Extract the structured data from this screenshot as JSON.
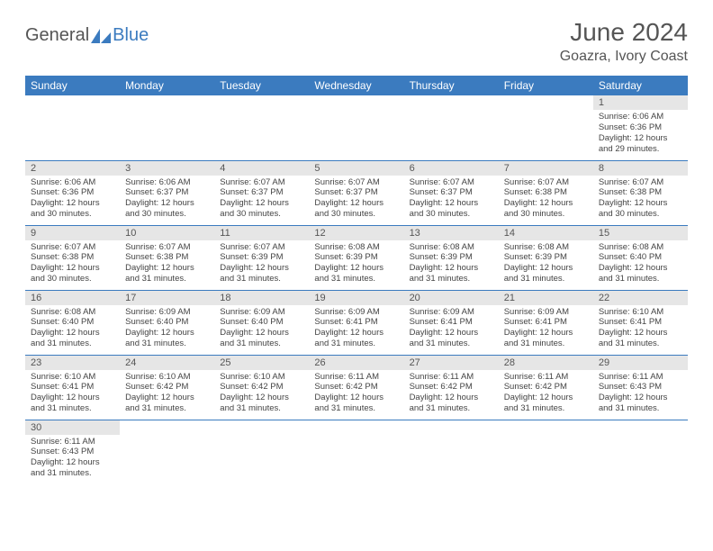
{
  "brand": {
    "text1": "General",
    "text2": "Blue",
    "icon_color": "#3b7bbf"
  },
  "header": {
    "month_title": "June 2024",
    "location": "Goazra, Ivory Coast"
  },
  "calendar": {
    "columns": [
      "Sunday",
      "Monday",
      "Tuesday",
      "Wednesday",
      "Thursday",
      "Friday",
      "Saturday"
    ],
    "header_bg": "#3b7bbf",
    "header_fg": "#ffffff",
    "cell_border": "#3b7bbf",
    "daynum_bg": "#e6e6e6",
    "first_weekday_index": 6,
    "days": [
      {
        "n": 1,
        "sunrise": "6:06 AM",
        "sunset": "6:36 PM",
        "daylight": "12 hours and 29 minutes."
      },
      {
        "n": 2,
        "sunrise": "6:06 AM",
        "sunset": "6:36 PM",
        "daylight": "12 hours and 30 minutes."
      },
      {
        "n": 3,
        "sunrise": "6:06 AM",
        "sunset": "6:37 PM",
        "daylight": "12 hours and 30 minutes."
      },
      {
        "n": 4,
        "sunrise": "6:07 AM",
        "sunset": "6:37 PM",
        "daylight": "12 hours and 30 minutes."
      },
      {
        "n": 5,
        "sunrise": "6:07 AM",
        "sunset": "6:37 PM",
        "daylight": "12 hours and 30 minutes."
      },
      {
        "n": 6,
        "sunrise": "6:07 AM",
        "sunset": "6:37 PM",
        "daylight": "12 hours and 30 minutes."
      },
      {
        "n": 7,
        "sunrise": "6:07 AM",
        "sunset": "6:38 PM",
        "daylight": "12 hours and 30 minutes."
      },
      {
        "n": 8,
        "sunrise": "6:07 AM",
        "sunset": "6:38 PM",
        "daylight": "12 hours and 30 minutes."
      },
      {
        "n": 9,
        "sunrise": "6:07 AM",
        "sunset": "6:38 PM",
        "daylight": "12 hours and 30 minutes."
      },
      {
        "n": 10,
        "sunrise": "6:07 AM",
        "sunset": "6:38 PM",
        "daylight": "12 hours and 31 minutes."
      },
      {
        "n": 11,
        "sunrise": "6:07 AM",
        "sunset": "6:39 PM",
        "daylight": "12 hours and 31 minutes."
      },
      {
        "n": 12,
        "sunrise": "6:08 AM",
        "sunset": "6:39 PM",
        "daylight": "12 hours and 31 minutes."
      },
      {
        "n": 13,
        "sunrise": "6:08 AM",
        "sunset": "6:39 PM",
        "daylight": "12 hours and 31 minutes."
      },
      {
        "n": 14,
        "sunrise": "6:08 AM",
        "sunset": "6:39 PM",
        "daylight": "12 hours and 31 minutes."
      },
      {
        "n": 15,
        "sunrise": "6:08 AM",
        "sunset": "6:40 PM",
        "daylight": "12 hours and 31 minutes."
      },
      {
        "n": 16,
        "sunrise": "6:08 AM",
        "sunset": "6:40 PM",
        "daylight": "12 hours and 31 minutes."
      },
      {
        "n": 17,
        "sunrise": "6:09 AM",
        "sunset": "6:40 PM",
        "daylight": "12 hours and 31 minutes."
      },
      {
        "n": 18,
        "sunrise": "6:09 AM",
        "sunset": "6:40 PM",
        "daylight": "12 hours and 31 minutes."
      },
      {
        "n": 19,
        "sunrise": "6:09 AM",
        "sunset": "6:41 PM",
        "daylight": "12 hours and 31 minutes."
      },
      {
        "n": 20,
        "sunrise": "6:09 AM",
        "sunset": "6:41 PM",
        "daylight": "12 hours and 31 minutes."
      },
      {
        "n": 21,
        "sunrise": "6:09 AM",
        "sunset": "6:41 PM",
        "daylight": "12 hours and 31 minutes."
      },
      {
        "n": 22,
        "sunrise": "6:10 AM",
        "sunset": "6:41 PM",
        "daylight": "12 hours and 31 minutes."
      },
      {
        "n": 23,
        "sunrise": "6:10 AM",
        "sunset": "6:41 PM",
        "daylight": "12 hours and 31 minutes."
      },
      {
        "n": 24,
        "sunrise": "6:10 AM",
        "sunset": "6:42 PM",
        "daylight": "12 hours and 31 minutes."
      },
      {
        "n": 25,
        "sunrise": "6:10 AM",
        "sunset": "6:42 PM",
        "daylight": "12 hours and 31 minutes."
      },
      {
        "n": 26,
        "sunrise": "6:11 AM",
        "sunset": "6:42 PM",
        "daylight": "12 hours and 31 minutes."
      },
      {
        "n": 27,
        "sunrise": "6:11 AM",
        "sunset": "6:42 PM",
        "daylight": "12 hours and 31 minutes."
      },
      {
        "n": 28,
        "sunrise": "6:11 AM",
        "sunset": "6:42 PM",
        "daylight": "12 hours and 31 minutes."
      },
      {
        "n": 29,
        "sunrise": "6:11 AM",
        "sunset": "6:43 PM",
        "daylight": "12 hours and 31 minutes."
      },
      {
        "n": 30,
        "sunrise": "6:11 AM",
        "sunset": "6:43 PM",
        "daylight": "12 hours and 31 minutes."
      }
    ],
    "labels": {
      "sunrise": "Sunrise:",
      "sunset": "Sunset:",
      "daylight": "Daylight:"
    }
  }
}
